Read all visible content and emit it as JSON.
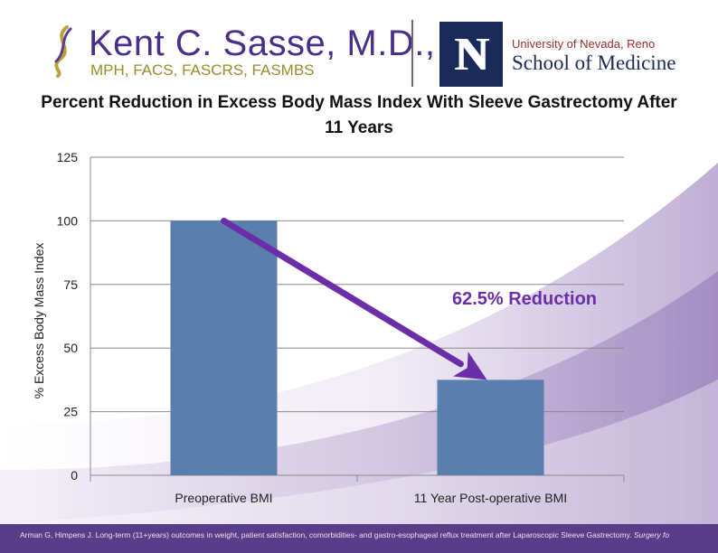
{
  "header": {
    "doctor_name": "Kent C. Sasse, M.D.,",
    "doctor_credentials": "MPH, FACS, FASCRS, FASMBS",
    "unr_letter": "N",
    "university": "University of Nevada, Reno",
    "school": "School of Medicine"
  },
  "chart_data": {
    "type": "bar",
    "title": "Percent Reduction in Excess Body Mass Index With Sleeve Gastrectomy After 11 Years",
    "title_line1": "Percent Reduction in Excess Body Mass Index With Sleeve Gastrectomy After",
    "title_line2": "11 Years",
    "categories": [
      "Preoperative BMI",
      "11 Year Post-operative BMI"
    ],
    "values": [
      100,
      37.5
    ],
    "xlabel": "",
    "ylabel": "% Excess Body Mass Index",
    "ylim": [
      0,
      125
    ],
    "yticks": [
      0,
      25,
      50,
      75,
      100,
      125
    ],
    "grid": true,
    "bar_color": "#5b7fad",
    "annotation": "62.5% Reduction",
    "annotation_color": "#6a2fa8"
  },
  "footer": {
    "citation": "Arman G, Himpens J. Long-term (11+years) outcomes in weight, patient satisfaction, comorbidities- and gastro-esophageal reflux treatment after Laparoscopic Sleeve Gastrectomy.",
    "citation_journal": "Surgery fo"
  }
}
